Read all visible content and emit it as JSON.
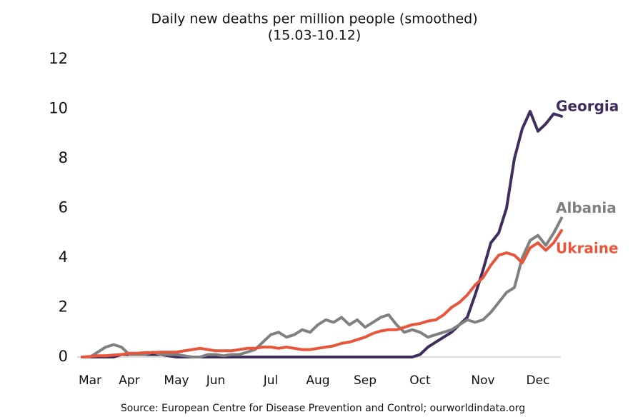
{
  "chart_data": {
    "type": "line",
    "title": "Daily new deaths per million people (smoothed)",
    "subtitle": "(15.03-10.12)",
    "source": "Source: European Centre for Disease Prevention and Control; ourworldindata.org",
    "categories": [
      null,
      "Mar",
      null,
      null,
      null,
      null,
      "Apr",
      null,
      null,
      null,
      null,
      null,
      "May",
      null,
      null,
      null,
      null,
      "Jun",
      null,
      null,
      null,
      null,
      null,
      null,
      "Jul",
      null,
      null,
      null,
      null,
      null,
      "Aug",
      null,
      null,
      null,
      null,
      null,
      "Sep",
      null,
      null,
      null,
      null,
      null,
      null,
      "Oct",
      null,
      null,
      null,
      null,
      null,
      null,
      null,
      "Nov",
      null,
      null,
      null,
      null,
      null,
      null,
      "Dec",
      null,
      null,
      null
    ],
    "series": [
      {
        "name": "Georgia",
        "color": "#3f2d5e",
        "values": [
          0,
          0,
          0,
          0,
          0,
          0.1,
          0.1,
          0.1,
          0.1,
          0.1,
          0.1,
          0.05,
          0,
          0,
          0,
          0,
          0,
          0,
          0,
          0,
          0,
          0,
          0,
          0,
          0,
          0,
          0,
          0,
          0,
          0,
          0,
          0,
          0,
          0,
          0,
          0,
          0,
          0,
          0,
          0,
          0,
          0,
          0,
          0.1,
          0.4,
          0.6,
          0.8,
          1.0,
          1.3,
          1.6,
          2.5,
          3.5,
          4.6,
          5.0,
          6.0,
          8.0,
          9.2,
          9.9,
          9.1,
          9.4,
          9.8,
          9.7
        ]
      },
      {
        "name": "Albania",
        "color": "#808080",
        "values": [
          0,
          0,
          0.2,
          0.4,
          0.5,
          0.4,
          0.1,
          0.1,
          0.1,
          0.2,
          0.1,
          0.1,
          0.1,
          0.05,
          0,
          0,
          0.1,
          0.1,
          0.05,
          0.1,
          0.1,
          0.2,
          0.3,
          0.6,
          0.9,
          1.0,
          0.8,
          0.9,
          1.1,
          1.0,
          1.3,
          1.5,
          1.4,
          1.6,
          1.3,
          1.5,
          1.2,
          1.4,
          1.6,
          1.7,
          1.3,
          1.0,
          1.1,
          1.0,
          0.8,
          0.9,
          1.0,
          1.1,
          1.3,
          1.5,
          1.4,
          1.5,
          1.8,
          2.2,
          2.6,
          2.8,
          4.0,
          4.7,
          4.9,
          4.5,
          5.0,
          5.6
        ]
      },
      {
        "name": "Ukraine",
        "color": "#e8553a",
        "values": [
          0,
          0.02,
          0.05,
          0.05,
          0.08,
          0.1,
          0.15,
          0.15,
          0.18,
          0.18,
          0.2,
          0.2,
          0.2,
          0.25,
          0.3,
          0.35,
          0.3,
          0.25,
          0.25,
          0.25,
          0.3,
          0.35,
          0.35,
          0.4,
          0.4,
          0.35,
          0.4,
          0.35,
          0.3,
          0.3,
          0.35,
          0.4,
          0.45,
          0.55,
          0.6,
          0.7,
          0.8,
          0.95,
          1.05,
          1.1,
          1.1,
          1.2,
          1.3,
          1.35,
          1.45,
          1.5,
          1.7,
          2.0,
          2.2,
          2.5,
          2.9,
          3.2,
          3.7,
          4.1,
          4.2,
          4.1,
          3.8,
          4.4,
          4.6,
          4.3,
          4.6,
          5.1
        ]
      }
    ],
    "ylim": [
      0,
      12
    ],
    "yticks": [
      0,
      2,
      4,
      6,
      8,
      10,
      12
    ],
    "grid": false
  }
}
